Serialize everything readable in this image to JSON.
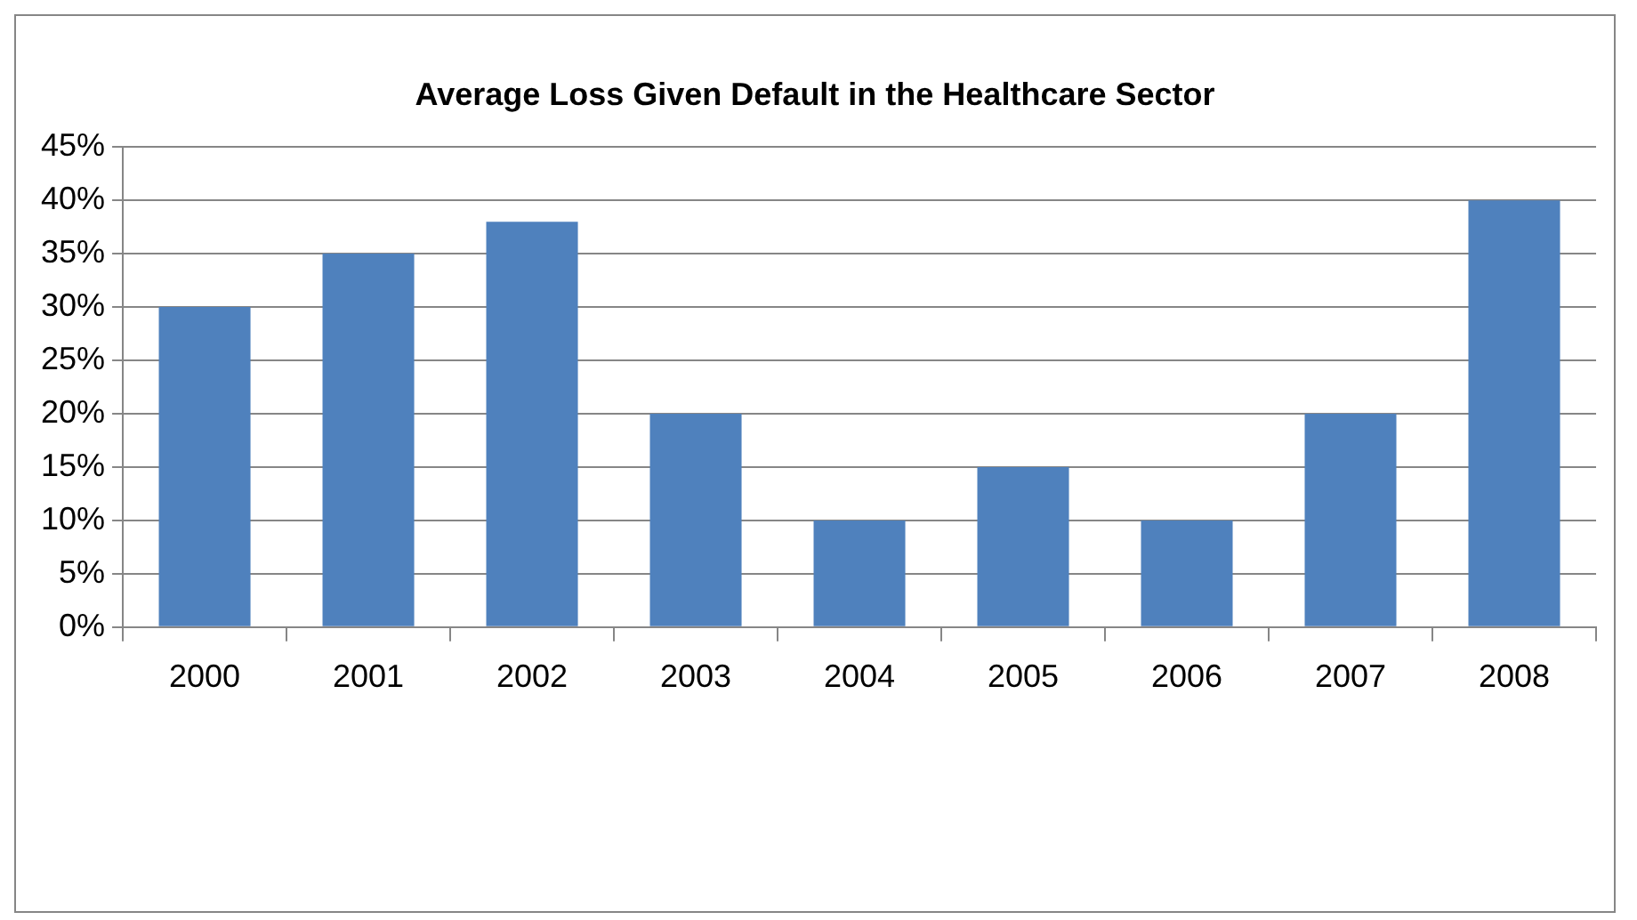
{
  "chart_data": {
    "type": "bar",
    "title": "Average Loss Given Default in the Healthcare Sector",
    "categories": [
      "2000",
      "2001",
      "2002",
      "2003",
      "2004",
      "2005",
      "2006",
      "2007",
      "2008"
    ],
    "values": [
      30,
      35,
      38,
      20,
      10,
      15,
      10,
      20,
      40
    ],
    "color": "#4f81bd",
    "ylim": [
      0,
      45
    ],
    "yticks": [
      {
        "value": 0,
        "label": "0%"
      },
      {
        "value": 5,
        "label": "5%"
      },
      {
        "value": 10,
        "label": "10%"
      },
      {
        "value": 15,
        "label": "15%"
      },
      {
        "value": 20,
        "label": "20%"
      },
      {
        "value": 25,
        "label": "25%"
      },
      {
        "value": 30,
        "label": "30%"
      },
      {
        "value": 35,
        "label": "35%"
      },
      {
        "value": 40,
        "label": "40%"
      },
      {
        "value": 45,
        "label": "45%"
      }
    ],
    "grid": "y",
    "legend": false
  }
}
